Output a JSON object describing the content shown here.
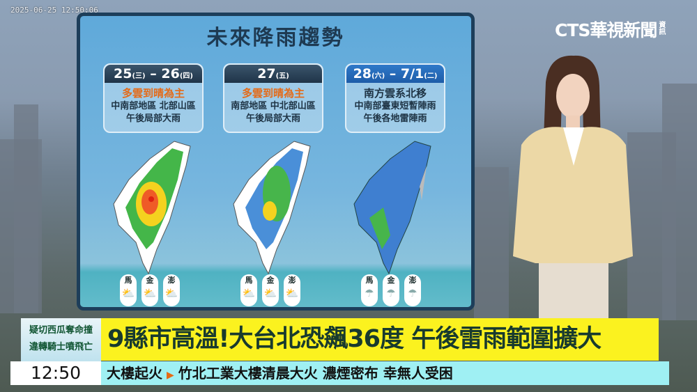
{
  "timestamp": "2025-06-25 12:50:06",
  "logo": {
    "text": "CTS華視新聞",
    "sub": "資訊"
  },
  "panel": {
    "title": "未來降雨趨勢",
    "cards": [
      {
        "date": "25",
        "day": "(三)",
        "sep": " – ",
        "date2": "26",
        "day2": "(四)",
        "line1": "多雲到晴為主",
        "line2": "中南部地區 北部山區",
        "line3": "午後局部大雨"
      },
      {
        "date": "27",
        "day": "(五)",
        "sep": "",
        "date2": "",
        "day2": "",
        "line1": "多雲到晴為主",
        "line2": "南部地區 中北部山區",
        "line3": "午後局部大雨"
      },
      {
        "date": "28",
        "day": "(六)",
        "sep": " – ",
        "date2": "7/1",
        "day2": "(二)",
        "line1": "南方雲系北移",
        "line2": "中南部臺東短暫陣雨",
        "line3": "午後各地雷陣雨"
      }
    ],
    "islands": [
      "馬",
      "金",
      "澎"
    ],
    "icons": [
      "partly-sunny-icon",
      "partly-sunny-icon",
      "rain-icon"
    ]
  },
  "lower_third": {
    "side": [
      "疑切西瓜奪命撞",
      "違轉騎士噴飛亡"
    ],
    "headline": "9縣市高溫!大台北恐飆36度 午後雷雨範圍擴大",
    "time": "12:50",
    "ticker_topic": "大樓起火",
    "ticker_text": "竹北工業大樓清晨大火 濃煙密布 幸無人受困"
  },
  "colors": {
    "headline_bg": "#fbf21f",
    "ticker_bg": "#9ff0f3",
    "accent": "#e56a17"
  }
}
